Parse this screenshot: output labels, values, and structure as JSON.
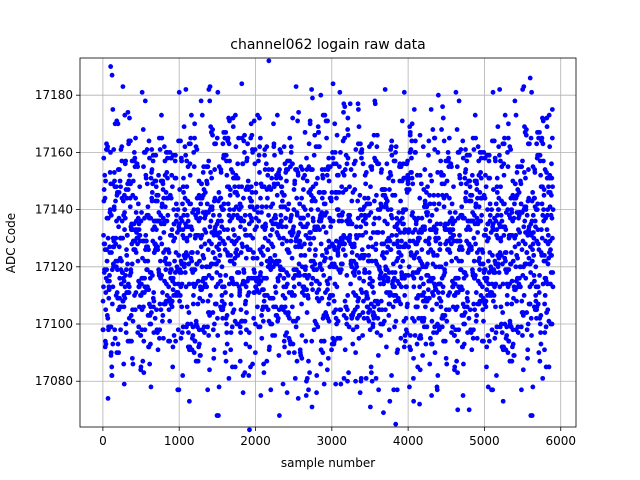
{
  "chart_data": {
    "type": "scatter",
    "title": "channel062 logain raw data",
    "xlabel": "sample number",
    "ylabel": "ADC Code",
    "xlim": [
      -300,
      6200
    ],
    "ylim": [
      17064,
      17193
    ],
    "x_ticks": [
      0,
      1000,
      2000,
      3000,
      4000,
      5000,
      6000
    ],
    "x_tick_labels": [
      "0",
      "1000",
      "2000",
      "3000",
      "4000",
      "5000",
      "6000"
    ],
    "y_ticks": [
      17080,
      17100,
      17120,
      17140,
      17160,
      17180
    ],
    "y_tick_labels": [
      "17080",
      "17100",
      "17120",
      "17140",
      "17160",
      "17180"
    ],
    "grid": true,
    "marker": "circle",
    "color": "#0000ff",
    "sample_count": 5900,
    "distribution": {
      "center": 17128,
      "typical_range": [
        17090,
        17165
      ]
    },
    "notable_points": [
      {
        "x": 130,
        "y": 17175
      },
      {
        "x": 1400,
        "y": 17178
      },
      {
        "x": 1820,
        "y": 17184
      },
      {
        "x": 3950,
        "y": 17181
      },
      {
        "x": 5600,
        "y": 17186
      },
      {
        "x": 5890,
        "y": 17175
      },
      {
        "x": 280,
        "y": 17079
      },
      {
        "x": 630,
        "y": 17078
      },
      {
        "x": 2200,
        "y": 17077
      },
      {
        "x": 2800,
        "y": 17076
      },
      {
        "x": 2900,
        "y": 17079
      },
      {
        "x": 4150,
        "y": 17072
      },
      {
        "x": 4650,
        "y": 17070
      },
      {
        "x": 4800,
        "y": 17070
      },
      {
        "x": 4720,
        "y": 17075
      },
      {
        "x": 5050,
        "y": 17078
      }
    ]
  }
}
